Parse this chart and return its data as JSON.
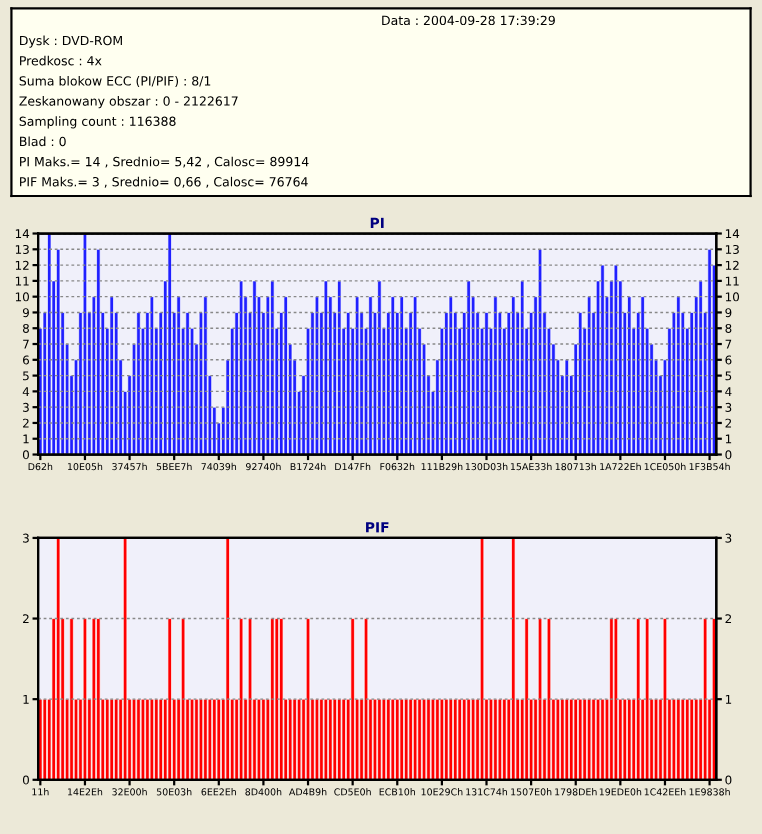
{
  "chart_data": [
    {
      "type": "other",
      "annotations": [
        "Data : 2004-09-28 17:39:29",
        "Dysk : DVD-ROM",
        "Predkosc : 4x",
        "Suma blokow ECC (PI/PIF) : 8/1",
        "Zeskanowany obszar : 0 - 2122617",
        "Sampling count : 116388",
        "Blad : 0",
        "PI Maks.= 14 , Srednio= 5,42 , Calosc= 89914",
        "PIF Maks.= 3 , Srednio= 0,66 , Calosc= 76764"
      ]
    },
    {
      "type": "bar",
      "title": "PI",
      "color": "#2020ff",
      "grid": "y",
      "ylim": [
        0,
        14
      ],
      "yticks": [
        0,
        1,
        2,
        3,
        4,
        5,
        6,
        7,
        8,
        9,
        10,
        11,
        12,
        13,
        14
      ],
      "y2lim": [
        0,
        14
      ],
      "y2ticks": [
        0,
        1,
        2,
        3,
        4,
        5,
        6,
        7,
        8,
        9,
        10,
        11,
        12,
        13,
        14
      ],
      "categories": [
        "D62h",
        null,
        null,
        null,
        null,
        null,
        null,
        null,
        null,
        null,
        "10E05h",
        null,
        null,
        null,
        null,
        null,
        null,
        null,
        null,
        null,
        "37457h",
        null,
        null,
        null,
        null,
        null,
        null,
        null,
        null,
        null,
        "5BEE7h",
        null,
        null,
        null,
        null,
        null,
        null,
        null,
        null,
        null,
        "74039h",
        null,
        null,
        null,
        null,
        null,
        null,
        null,
        null,
        null,
        "92740h",
        null,
        null,
        null,
        null,
        null,
        null,
        null,
        null,
        null,
        "B1724h",
        null,
        null,
        null,
        null,
        null,
        null,
        null,
        null,
        null,
        "D147Fh",
        null,
        null,
        null,
        null,
        null,
        null,
        null,
        null,
        null,
        "F0632h",
        null,
        null,
        null,
        null,
        null,
        null,
        null,
        null,
        null,
        "111B29h",
        null,
        null,
        null,
        null,
        null,
        null,
        null,
        null,
        null,
        "130D03h",
        null,
        null,
        null,
        null,
        null,
        null,
        null,
        null,
        null,
        "15AE33h",
        null,
        null,
        null,
        null,
        null,
        null,
        null,
        null,
        null,
        "180713h",
        null,
        null,
        null,
        null,
        null,
        null,
        null,
        null,
        null,
        "1A722Eh",
        null,
        null,
        null,
        null,
        null,
        null,
        null,
        null,
        null,
        "1CE050h",
        null,
        null,
        null,
        null,
        null,
        null,
        null,
        null,
        null,
        "1F3B54h",
        null
      ],
      "values": [
        8,
        9,
        14,
        11,
        13,
        9,
        7,
        5,
        6,
        9,
        14,
        9,
        10,
        13,
        9,
        8,
        10,
        9,
        6,
        4,
        5,
        7,
        9,
        8,
        9,
        10,
        8,
        9,
        11,
        14,
        9,
        10,
        8,
        9,
        8,
        7,
        9,
        10,
        5,
        3,
        2,
        3,
        6,
        8,
        9,
        11,
        10,
        9,
        11,
        10,
        9,
        10,
        11,
        8,
        9,
        10,
        7,
        6,
        4,
        5,
        8,
        9,
        10,
        9,
        11,
        10,
        9,
        11,
        8,
        9,
        8,
        10,
        9,
        8,
        10,
        9,
        11,
        8,
        9,
        10,
        9,
        10,
        8,
        9,
        10,
        8,
        7,
        5,
        4,
        6,
        8,
        9,
        10,
        9,
        8,
        9,
        11,
        10,
        9,
        8,
        9,
        8,
        10,
        9,
        8,
        9,
        10,
        9,
        11,
        8,
        9,
        10,
        13,
        9,
        8,
        7,
        6,
        5,
        6,
        5,
        7,
        9,
        8,
        10,
        9,
        11,
        12,
        10,
        11,
        12,
        11,
        9,
        10,
        8,
        9,
        10,
        8,
        7,
        6,
        5,
        6,
        8,
        9,
        10,
        9,
        8,
        9,
        10,
        11,
        9,
        13,
        12
      ]
    },
    {
      "type": "bar",
      "title": "PIF",
      "color": "#ff0000",
      "grid": "y",
      "ylim": [
        0,
        3
      ],
      "yticks": [
        0,
        1,
        2,
        3
      ],
      "y2lim": [
        0,
        3
      ],
      "y2ticks": [
        0,
        1,
        2,
        3
      ],
      "categories": [
        "11h",
        null,
        null,
        null,
        null,
        null,
        null,
        null,
        null,
        null,
        "14E2Eh",
        null,
        null,
        null,
        null,
        null,
        null,
        null,
        null,
        null,
        "32E00h",
        null,
        null,
        null,
        null,
        null,
        null,
        null,
        null,
        null,
        "50E03h",
        null,
        null,
        null,
        null,
        null,
        null,
        null,
        null,
        null,
        "6EE2Eh",
        null,
        null,
        null,
        null,
        null,
        null,
        null,
        null,
        null,
        "8D400h",
        null,
        null,
        null,
        null,
        null,
        null,
        null,
        null,
        null,
        "AD4B9h",
        null,
        null,
        null,
        null,
        null,
        null,
        null,
        null,
        null,
        "CD5E0h",
        null,
        null,
        null,
        null,
        null,
        null,
        null,
        null,
        null,
        "ECB10h",
        null,
        null,
        null,
        null,
        null,
        null,
        null,
        null,
        null,
        "10E29Ch",
        null,
        null,
        null,
        null,
        null,
        null,
        null,
        null,
        null,
        "131C74h",
        null,
        null,
        null,
        null,
        null,
        null,
        null,
        null,
        null,
        "1507E0h",
        null,
        null,
        null,
        null,
        null,
        null,
        null,
        null,
        null,
        "1798DEh",
        null,
        null,
        null,
        null,
        null,
        null,
        null,
        null,
        null,
        "19EDE0h",
        null,
        null,
        null,
        null,
        null,
        null,
        null,
        null,
        null,
        "1C42EEh",
        null,
        null,
        null,
        null,
        null,
        null,
        null,
        null,
        null,
        "1E9838h",
        null
      ],
      "values": [
        1,
        1,
        1,
        2,
        3,
        2,
        1,
        2,
        1,
        1,
        2,
        1,
        2,
        2,
        1,
        1,
        1,
        1,
        1,
        3,
        1,
        1,
        1,
        1,
        1,
        1,
        1,
        1,
        1,
        2,
        1,
        1,
        2,
        1,
        1,
        1,
        1,
        1,
        1,
        1,
        1,
        1,
        3,
        1,
        1,
        2,
        1,
        2,
        1,
        1,
        1,
        1,
        2,
        2,
        2,
        1,
        1,
        1,
        1,
        1,
        2,
        1,
        1,
        1,
        1,
        1,
        1,
        1,
        1,
        1,
        2,
        1,
        1,
        2,
        1,
        1,
        1,
        1,
        1,
        1,
        1,
        1,
        1,
        1,
        1,
        1,
        1,
        1,
        1,
        1,
        1,
        1,
        1,
        1,
        1,
        1,
        1,
        1,
        1,
        3,
        1,
        1,
        1,
        1,
        1,
        1,
        3,
        1,
        1,
        2,
        1,
        1,
        2,
        1,
        2,
        1,
        1,
        1,
        1,
        1,
        1,
        1,
        1,
        1,
        1,
        1,
        1,
        1,
        2,
        2,
        1,
        1,
        1,
        1,
        2,
        1,
        2,
        1,
        1,
        1,
        2,
        1,
        1,
        1,
        1,
        1,
        1,
        1,
        1,
        2,
        1,
        2
      ]
    }
  ]
}
